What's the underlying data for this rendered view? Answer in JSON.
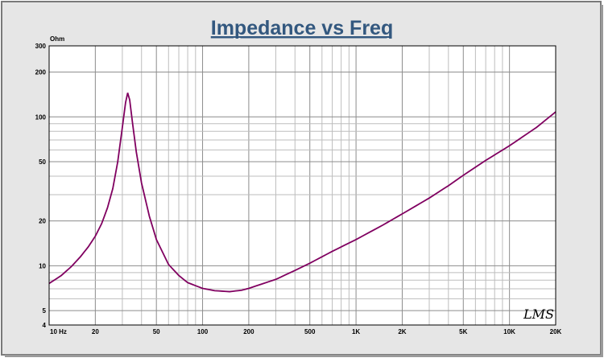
{
  "chart_data": {
    "type": "line",
    "title": "Impedance vs Freq",
    "ylabel": "Ohm",
    "x_scale": "log",
    "y_scale": "log",
    "xlim": [
      10,
      20000
    ],
    "ylim": [
      4,
      300
    ],
    "grid": true,
    "x_tick_labels": [
      {
        "value": 10,
        "label": "10  Hz"
      },
      {
        "value": 20,
        "label": "20"
      },
      {
        "value": 50,
        "label": "50"
      },
      {
        "value": 100,
        "label": "100"
      },
      {
        "value": 200,
        "label": "200"
      },
      {
        "value": 500,
        "label": "500"
      },
      {
        "value": 1000,
        "label": "1K"
      },
      {
        "value": 2000,
        "label": "2K"
      },
      {
        "value": 5000,
        "label": "5K"
      },
      {
        "value": 10000,
        "label": "10K"
      },
      {
        "value": 20000,
        "label": "20K"
      }
    ],
    "y_tick_labels": [
      {
        "value": 300,
        "label": "300"
      },
      {
        "value": 200,
        "label": "200"
      },
      {
        "value": 100,
        "label": "100"
      },
      {
        "value": 50,
        "label": "50"
      },
      {
        "value": 20,
        "label": "20"
      },
      {
        "value": 10,
        "label": "10"
      },
      {
        "value": 5,
        "label": "5"
      },
      {
        "value": 4,
        "label": "4"
      }
    ],
    "series": [
      {
        "color": "#800060",
        "points": [
          [
            10,
            7.6
          ],
          [
            12,
            8.6
          ],
          [
            14,
            9.9
          ],
          [
            16,
            11.5
          ],
          [
            18,
            13.4
          ],
          [
            20,
            15.8
          ],
          [
            22,
            19.2
          ],
          [
            24,
            24.5
          ],
          [
            26,
            33
          ],
          [
            28,
            50
          ],
          [
            30,
            85
          ],
          [
            31.5,
            125
          ],
          [
            32.5,
            145
          ],
          [
            33.5,
            130
          ],
          [
            35,
            90
          ],
          [
            37,
            58
          ],
          [
            40,
            36
          ],
          [
            45,
            21.5
          ],
          [
            50,
            15
          ],
          [
            60,
            10.2
          ],
          [
            70,
            8.6
          ],
          [
            80,
            7.7
          ],
          [
            100,
            7.05
          ],
          [
            120,
            6.8
          ],
          [
            150,
            6.7
          ],
          [
            180,
            6.85
          ],
          [
            200,
            7.05
          ],
          [
            300,
            8.1
          ],
          [
            400,
            9.3
          ],
          [
            500,
            10.4
          ],
          [
            700,
            12.5
          ],
          [
            1000,
            15
          ],
          [
            1500,
            18.8
          ],
          [
            2000,
            22.3
          ],
          [
            3000,
            28.5
          ],
          [
            4000,
            34.5
          ],
          [
            5000,
            40.5
          ],
          [
            7000,
            51
          ],
          [
            10000,
            64
          ],
          [
            15000,
            85
          ],
          [
            20000,
            108
          ]
        ]
      }
    ]
  },
  "logo_text": "LMS"
}
